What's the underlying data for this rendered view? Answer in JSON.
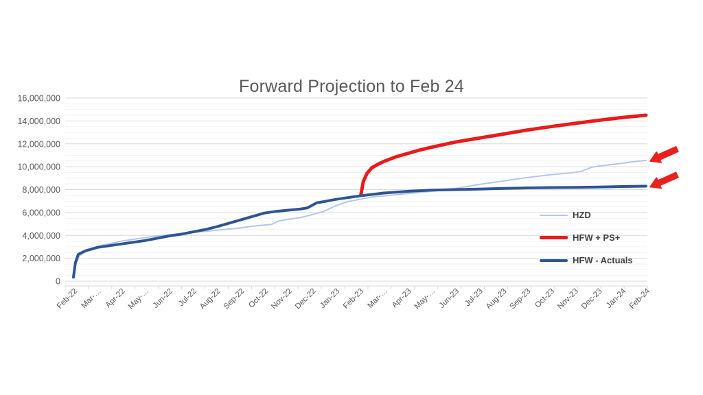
{
  "page": {
    "background": "#ffffff"
  },
  "chart_data": {
    "type": "line",
    "title": "Forward Projection to Feb 24",
    "xlabel": "",
    "ylabel": "",
    "x_tick_labels": [
      "Feb-22",
      "Mar-…",
      "Apr-22",
      "May-…",
      "Jun-22",
      "Jul-22",
      "Aug-22",
      "Sep-22",
      "Oct-22",
      "Nov-22",
      "Dec-22",
      "Jan-23",
      "Feb-23",
      "Mar-…",
      "Apr-23",
      "May-…",
      "Jun-23",
      "Jul-23",
      "Aug-23",
      "Sep-23",
      "Oct-23",
      "Nov-23",
      "Dec-23",
      "Jan-24",
      "Feb-24"
    ],
    "y_axis": {
      "min": 0,
      "max": 16000000,
      "major_step": 2000000,
      "minor_step": 500000,
      "tick_values": [
        0,
        2000000,
        4000000,
        6000000,
        8000000,
        10000000,
        12000000,
        14000000,
        16000000
      ],
      "tick_labels": [
        "0",
        "2,000,000",
        "4,000,000",
        "6,000,000",
        "8,000,000",
        "10,000,000",
        "12,000,000",
        "14,000,000",
        "16,000,000"
      ]
    },
    "grid": {
      "major": true,
      "minor": true
    },
    "legend": {
      "position": "inside-right",
      "order": [
        "HZD",
        "HFW + PS+",
        "HFW - Actuals"
      ]
    },
    "series": [
      {
        "name": "HZD",
        "color": "#b4c7e7",
        "stroke_width": 2,
        "points": [
          [
            0,
            300000
          ],
          [
            0.1,
            1500000
          ],
          [
            0.25,
            2200000
          ],
          [
            0.5,
            2600000
          ],
          [
            1,
            3050000
          ],
          [
            2,
            3500000
          ],
          [
            3,
            3800000
          ],
          [
            3.5,
            3950000
          ],
          [
            4,
            4050000
          ],
          [
            5,
            4250000
          ],
          [
            6,
            4450000
          ],
          [
            7,
            4650000
          ],
          [
            7.5,
            4800000
          ],
          [
            8,
            4900000
          ],
          [
            8.3,
            4950000
          ],
          [
            8.6,
            5250000
          ],
          [
            9,
            5400000
          ],
          [
            9.5,
            5550000
          ],
          [
            10,
            5800000
          ],
          [
            10.5,
            6100000
          ],
          [
            11,
            6600000
          ],
          [
            11.5,
            6950000
          ],
          [
            12,
            7150000
          ],
          [
            12.5,
            7350000
          ],
          [
            13,
            7450000
          ],
          [
            13.5,
            7550000
          ],
          [
            14,
            7650000
          ],
          [
            15,
            7850000
          ],
          [
            16,
            8100000
          ],
          [
            17,
            8450000
          ],
          [
            18,
            8750000
          ],
          [
            19,
            9050000
          ],
          [
            20,
            9300000
          ],
          [
            21,
            9500000
          ],
          [
            21.3,
            9600000
          ],
          [
            21.7,
            9950000
          ],
          [
            22,
            10050000
          ],
          [
            23,
            10300000
          ],
          [
            23.5,
            10450000
          ],
          [
            24,
            10550000
          ]
        ]
      },
      {
        "name": "HFW + PS+",
        "color": "#e81b1d",
        "stroke_width": 5,
        "points": [
          [
            12.05,
            7550000
          ],
          [
            12.15,
            8700000
          ],
          [
            12.3,
            9400000
          ],
          [
            12.5,
            9900000
          ],
          [
            12.75,
            10200000
          ],
          [
            13,
            10450000
          ],
          [
            13.5,
            10850000
          ],
          [
            14,
            11150000
          ],
          [
            14.5,
            11450000
          ],
          [
            15,
            11700000
          ],
          [
            16,
            12150000
          ],
          [
            17,
            12500000
          ],
          [
            18,
            12850000
          ],
          [
            19,
            13200000
          ],
          [
            20,
            13500000
          ],
          [
            21,
            13780000
          ],
          [
            22,
            14050000
          ],
          [
            23,
            14300000
          ],
          [
            24,
            14500000
          ]
        ]
      },
      {
        "name": "HFW - Actuals",
        "color": "#2f5496",
        "stroke_width": 4,
        "points": [
          [
            0,
            350000
          ],
          [
            0.08,
            1600000
          ],
          [
            0.2,
            2350000
          ],
          [
            0.5,
            2650000
          ],
          [
            1,
            2950000
          ],
          [
            2,
            3250000
          ],
          [
            3,
            3550000
          ],
          [
            4,
            3950000
          ],
          [
            4.5,
            4100000
          ],
          [
            5,
            4300000
          ],
          [
            5.5,
            4500000
          ],
          [
            6,
            4750000
          ],
          [
            6.5,
            5050000
          ],
          [
            7,
            5350000
          ],
          [
            7.5,
            5650000
          ],
          [
            8,
            5950000
          ],
          [
            8.5,
            6100000
          ],
          [
            9,
            6200000
          ],
          [
            9.5,
            6300000
          ],
          [
            9.8,
            6400000
          ],
          [
            10.2,
            6850000
          ],
          [
            10.5,
            6950000
          ],
          [
            11,
            7150000
          ],
          [
            11.5,
            7300000
          ],
          [
            12,
            7450000
          ],
          [
            13,
            7700000
          ],
          [
            14,
            7850000
          ],
          [
            15,
            7950000
          ],
          [
            16,
            8000000
          ],
          [
            17,
            8050000
          ],
          [
            18,
            8100000
          ],
          [
            19,
            8150000
          ],
          [
            20,
            8180000
          ],
          [
            21,
            8200000
          ],
          [
            22,
            8230000
          ],
          [
            23,
            8270000
          ],
          [
            24,
            8300000
          ]
        ]
      }
    ],
    "annotations": [
      {
        "name": "arrow-to-hzd-end",
        "shape": "block-arrow",
        "color": "#e8201e",
        "target_series": "HZD",
        "angle_deg": -24
      },
      {
        "name": "arrow-to-hfw-actuals-end",
        "shape": "block-arrow",
        "color": "#e8201e",
        "target_series": "HFW - Actuals",
        "angle_deg": -24
      }
    ]
  },
  "colors": {
    "title_text": "#595959",
    "axis_text": "#595959",
    "legend_text": "#404040",
    "major_grid": "#d9d9d9",
    "minor_grid": "#f2f2f2",
    "axis_line": "#d9d9d9"
  }
}
